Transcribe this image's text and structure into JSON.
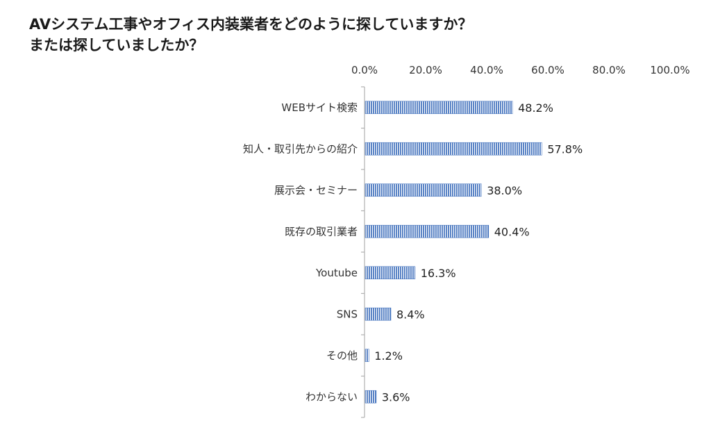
{
  "chart_data": {
    "type": "bar",
    "orientation": "horizontal",
    "title": [
      "AVシステム工事やオフィス内装業者をどのように探していますか？",
      "または探していましたか？"
    ],
    "categories": [
      "WEBサイト検索",
      "知人・取引先からの紹介",
      "展示会・セミナー",
      "既存の取引業者",
      "Youtube",
      "SNS",
      "その他",
      "わからない"
    ],
    "values": [
      48.2,
      57.8,
      38.0,
      40.4,
      16.3,
      8.4,
      1.2,
      3.6
    ],
    "value_labels": [
      "48.2%",
      "57.8%",
      "38.0%",
      "40.4%",
      "16.3%",
      "8.4%",
      "1.2%",
      "3.6%"
    ],
    "x_ticks": [
      "0.0%",
      "20.0%",
      "40.0%",
      "60.0%",
      "80.0%",
      "100.0%"
    ],
    "xlim": [
      0,
      100
    ],
    "x_axis_position": "top",
    "grid": false,
    "legend": "none",
    "bar_color": "#4a78c0",
    "bar_pattern": "vertical-stripes"
  }
}
